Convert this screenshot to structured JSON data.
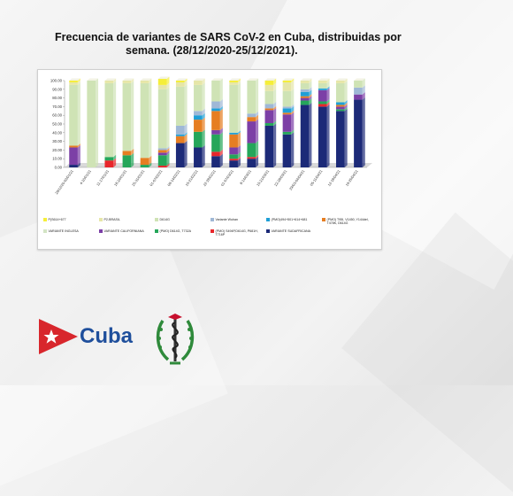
{
  "title_line1": "Frecuencia de variantes de SARS CoV-2 en Cuba, distribuidas por",
  "title_line2": "semana.  (28/12/2020-25/12/2021).",
  "brand": {
    "word": "Cuba"
  },
  "chart_data": {
    "type": "bar",
    "stacked": true,
    "ylim": [
      0,
      100
    ],
    "yticks": [
      "0.00",
      "10.00",
      "20.00",
      "30.00",
      "40.00",
      "50.00",
      "60.00",
      "70.00",
      "80.00",
      "90.00",
      "100.00"
    ],
    "categories": [
      "28/12/20-03/01/21",
      "4-10/01/21",
      "11-17/01/21",
      "18-24/01/21",
      "25-31/01/21",
      "01-07/02/21",
      "08-14/02/21",
      "15-21/02/21",
      "22-28/02/21",
      "01-07/03/21",
      "8-14/03/21",
      "15-21/03/21",
      "22-28/03/21",
      "29/03-04/04/21",
      "05-11/04/21",
      "12-18/04/21",
      "19-25/04/21"
    ],
    "legend": [
      {
        "name": "P(S614+677",
        "color": "#f5ee3a"
      },
      {
        "name": "P2-BRASIL",
        "color": "#e6e6a8"
      },
      {
        "name": "D614G",
        "color": "#cfe3b5"
      },
      {
        "name": "Variante Wuhan",
        "color": "#9fb8d6"
      },
      {
        "name": "(PMO)494+501+614+681",
        "color": "#1f9fd6"
      },
      {
        "name": "(PMO) T95I, V1450, Y144del, T478K, D614G",
        "color": "#e67e22"
      },
      {
        "name": "VARIANTE INGLESA",
        "color": "#d3e4c4"
      },
      {
        "name": "VARIANTE CALIFORNIANA",
        "color": "#7c3fa6"
      },
      {
        "name": "(PMO) D614G, T732A",
        "color": "#25a65a"
      },
      {
        "name": "(PMO) S494P,D614G, P681H, T716P",
        "color": "#e8262b"
      },
      {
        "name": "VARIANTE SUDAFRICANA",
        "color": "#1c2a78"
      }
    ],
    "series": [
      {
        "name": "VARIANTE SUDAFRICANA",
        "values": [
          3,
          0,
          0,
          0,
          0,
          0,
          28,
          23,
          13,
          8,
          10,
          48,
          38,
          72,
          70,
          65,
          78
        ]
      },
      {
        "name": "(PMO) S494P,D614G, P681H, T716P",
        "values": [
          0,
          0,
          8,
          0,
          0,
          2,
          0,
          0,
          5,
          2,
          2,
          0,
          0,
          0,
          3,
          0,
          0
        ]
      },
      {
        "name": "(PMO) D614G, T732A",
        "values": [
          0,
          0,
          4,
          14,
          3,
          12,
          0,
          18,
          20,
          5,
          16,
          3,
          3,
          5,
          3,
          2,
          0
        ]
      },
      {
        "name": "VARIANTE CALIFORNIANA",
        "values": [
          20,
          0,
          0,
          0,
          0,
          3,
          0,
          0,
          5,
          8,
          25,
          15,
          20,
          3,
          13,
          3,
          6
        ]
      },
      {
        "name": "(PMO) T95I, V1450, Y144del, T478K, D614G",
        "values": [
          2,
          0,
          0,
          5,
          8,
          3,
          8,
          14,
          22,
          15,
          5,
          2,
          2,
          2,
          0,
          2,
          0
        ]
      },
      {
        "name": "(PMO)494+501+614+681",
        "values": [
          0,
          0,
          0,
          0,
          0,
          0,
          2,
          5,
          3,
          2,
          0,
          0,
          5,
          5,
          2,
          3,
          0
        ]
      },
      {
        "name": "Variante Wuhan",
        "values": [
          0,
          0,
          0,
          0,
          0,
          2,
          10,
          5,
          8,
          0,
          4,
          5,
          2,
          3,
          0,
          0,
          8
        ]
      },
      {
        "name": "D614G",
        "values": [
          70,
          100,
          85,
          78,
          86,
          68,
          45,
          30,
          24,
          55,
          38,
          15,
          18,
          7,
          6,
          22,
          8
        ]
      },
      {
        "name": "P2-BRASIL",
        "values": [
          3,
          0,
          3,
          3,
          3,
          5,
          5,
          5,
          0,
          3,
          0,
          7,
          10,
          3,
          3,
          3,
          0
        ]
      },
      {
        "name": "P(S614+677",
        "values": [
          2,
          0,
          0,
          0,
          0,
          7,
          2,
          0,
          0,
          2,
          0,
          5,
          2,
          0,
          0,
          0,
          0
        ]
      }
    ]
  }
}
